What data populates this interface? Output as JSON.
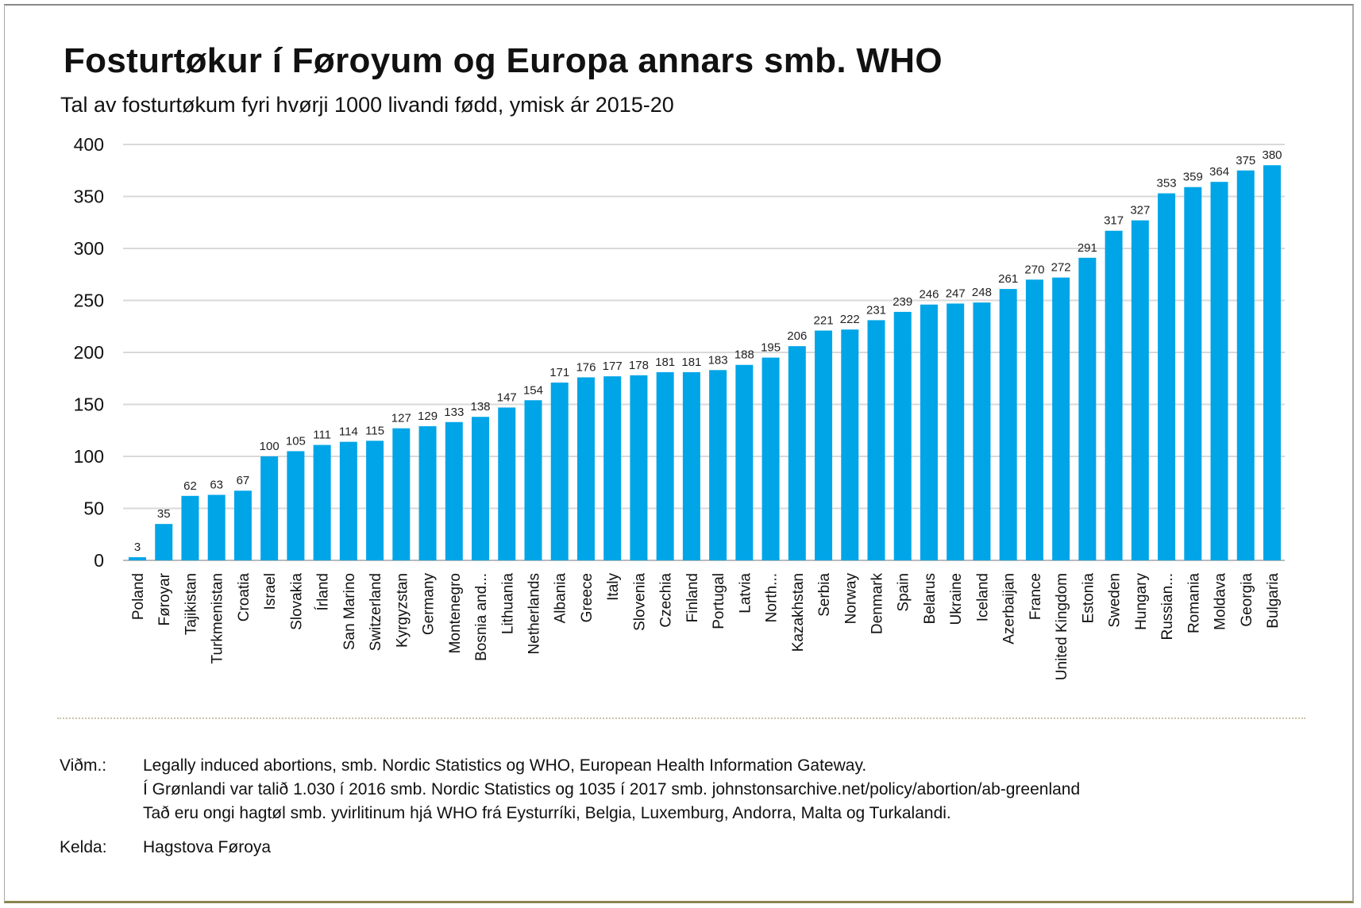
{
  "title": "Fosturtøkur í Føroyum og Europa annars smb. WHO",
  "subtitle": "Tal av fosturtøkum fyri hvørji 1000 livandi fødd, ymisk ár 2015-20",
  "chart_data": {
    "type": "bar",
    "title": "Fosturtøkur í Føroyum og Europa annars smb. WHO",
    "ylim": [
      0,
      400
    ],
    "yticks": [
      0,
      50,
      100,
      150,
      200,
      250,
      300,
      350,
      400
    ],
    "grid": true,
    "bar_color": "#00a5e8",
    "categories": [
      "Poland",
      "Føroyar",
      "Tajikistan",
      "Turkmenistan",
      "Croatia",
      "Israel",
      "Slovakia",
      "Írland",
      "San Marino",
      "Switzerland",
      "Kyrgyzstan",
      "Germany",
      "Montenegro",
      "Bosnia and...",
      "Lithuania",
      "Netherlands",
      "Albania",
      "Greece",
      "Italy",
      "Slovenia",
      "Czechia",
      "Finland",
      "Portugal",
      "Latvia",
      "North...",
      "Kazakhstan",
      "Serbia",
      "Norway",
      "Denmark",
      "Spain",
      "Belarus",
      "Ukraine",
      "Iceland",
      "Azerbaijan",
      "France",
      "United Kingdom",
      "Estonia",
      "Sweden",
      "Hungary",
      "Russian...",
      "Romania",
      "Moldava",
      "Georgia",
      "Bulgaria"
    ],
    "values": [
      3,
      35,
      62,
      63,
      67,
      100,
      105,
      111,
      114,
      115,
      127,
      129,
      133,
      138,
      147,
      154,
      171,
      176,
      177,
      178,
      181,
      181,
      183,
      188,
      195,
      206,
      221,
      222,
      231,
      239,
      246,
      247,
      248,
      261,
      270,
      272,
      291,
      317,
      327,
      353,
      359,
      364,
      375,
      380
    ]
  },
  "footer": {
    "note_label": "Viðm.:",
    "notes": [
      "Legally induced abortions, smb. Nordic Statistics og WHO, European Health Information Gateway.",
      "Í Grønlandi var talið 1.030 í 2016 smb. Nordic Statistics og 1035 í 2017 smb. johnstonsarchive.net/policy/abortion/ab-greenland",
      "Tað eru ongi hagtøl smb. yvirlitinum hjá WHO frá Eysturríki, Belgia, Luxemburg, Andorra, Malta og Turkalandi."
    ],
    "source_label": "Kelda:",
    "source": "Hagstova Føroya"
  }
}
